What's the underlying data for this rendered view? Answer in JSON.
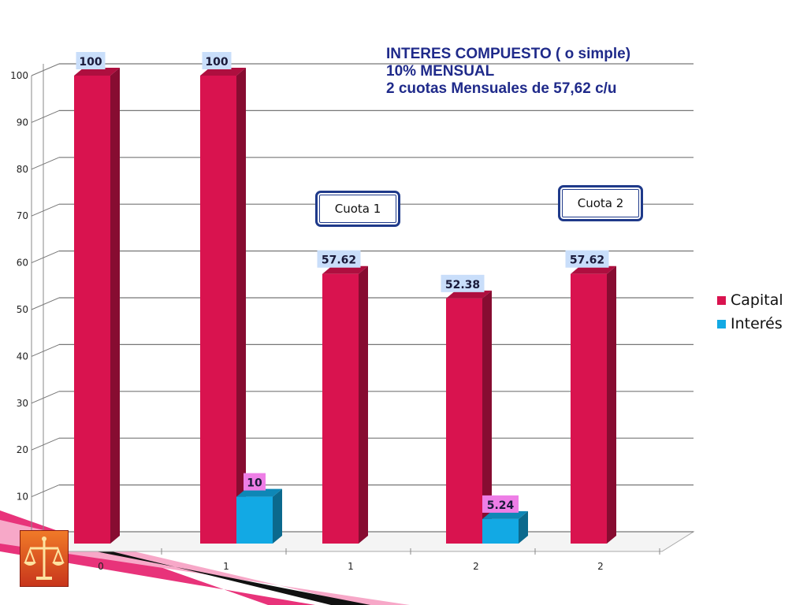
{
  "title_lines": [
    "INTERES COMPUESTO ( o simple)",
    "10% MENSUAL",
    "2 cuotas Mensuales de 57,62 c/u"
  ],
  "callouts": {
    "cuota1": "Cuota 1",
    "cuota2": "Cuota 2"
  },
  "colors": {
    "capital": "#d9134f",
    "interes": "#12a9e4",
    "label_bg_capital": "#c9defa",
    "label_bg_interes": "#ee7ee6"
  },
  "chart_data": {
    "type": "bar",
    "categories": [
      "0",
      "1",
      "1",
      "2",
      "2"
    ],
    "series": [
      {
        "name": "Capital",
        "values": [
          100,
          100,
          57.62,
          52.38,
          57.62
        ]
      },
      {
        "name": "Interés",
        "values": [
          null,
          10,
          null,
          5.24,
          null
        ]
      }
    ],
    "data_labels": {
      "Capital": [
        "100",
        "100",
        "57.62",
        "52.38",
        "57.62"
      ],
      "Interés": [
        "",
        "10",
        "",
        "5.24",
        ""
      ]
    },
    "ylim": [
      0,
      100
    ],
    "yticks": [
      10,
      20,
      30,
      40,
      50,
      60,
      70,
      80,
      90,
      100
    ],
    "grid": true,
    "legend_position": "right",
    "style": "3d-column"
  }
}
